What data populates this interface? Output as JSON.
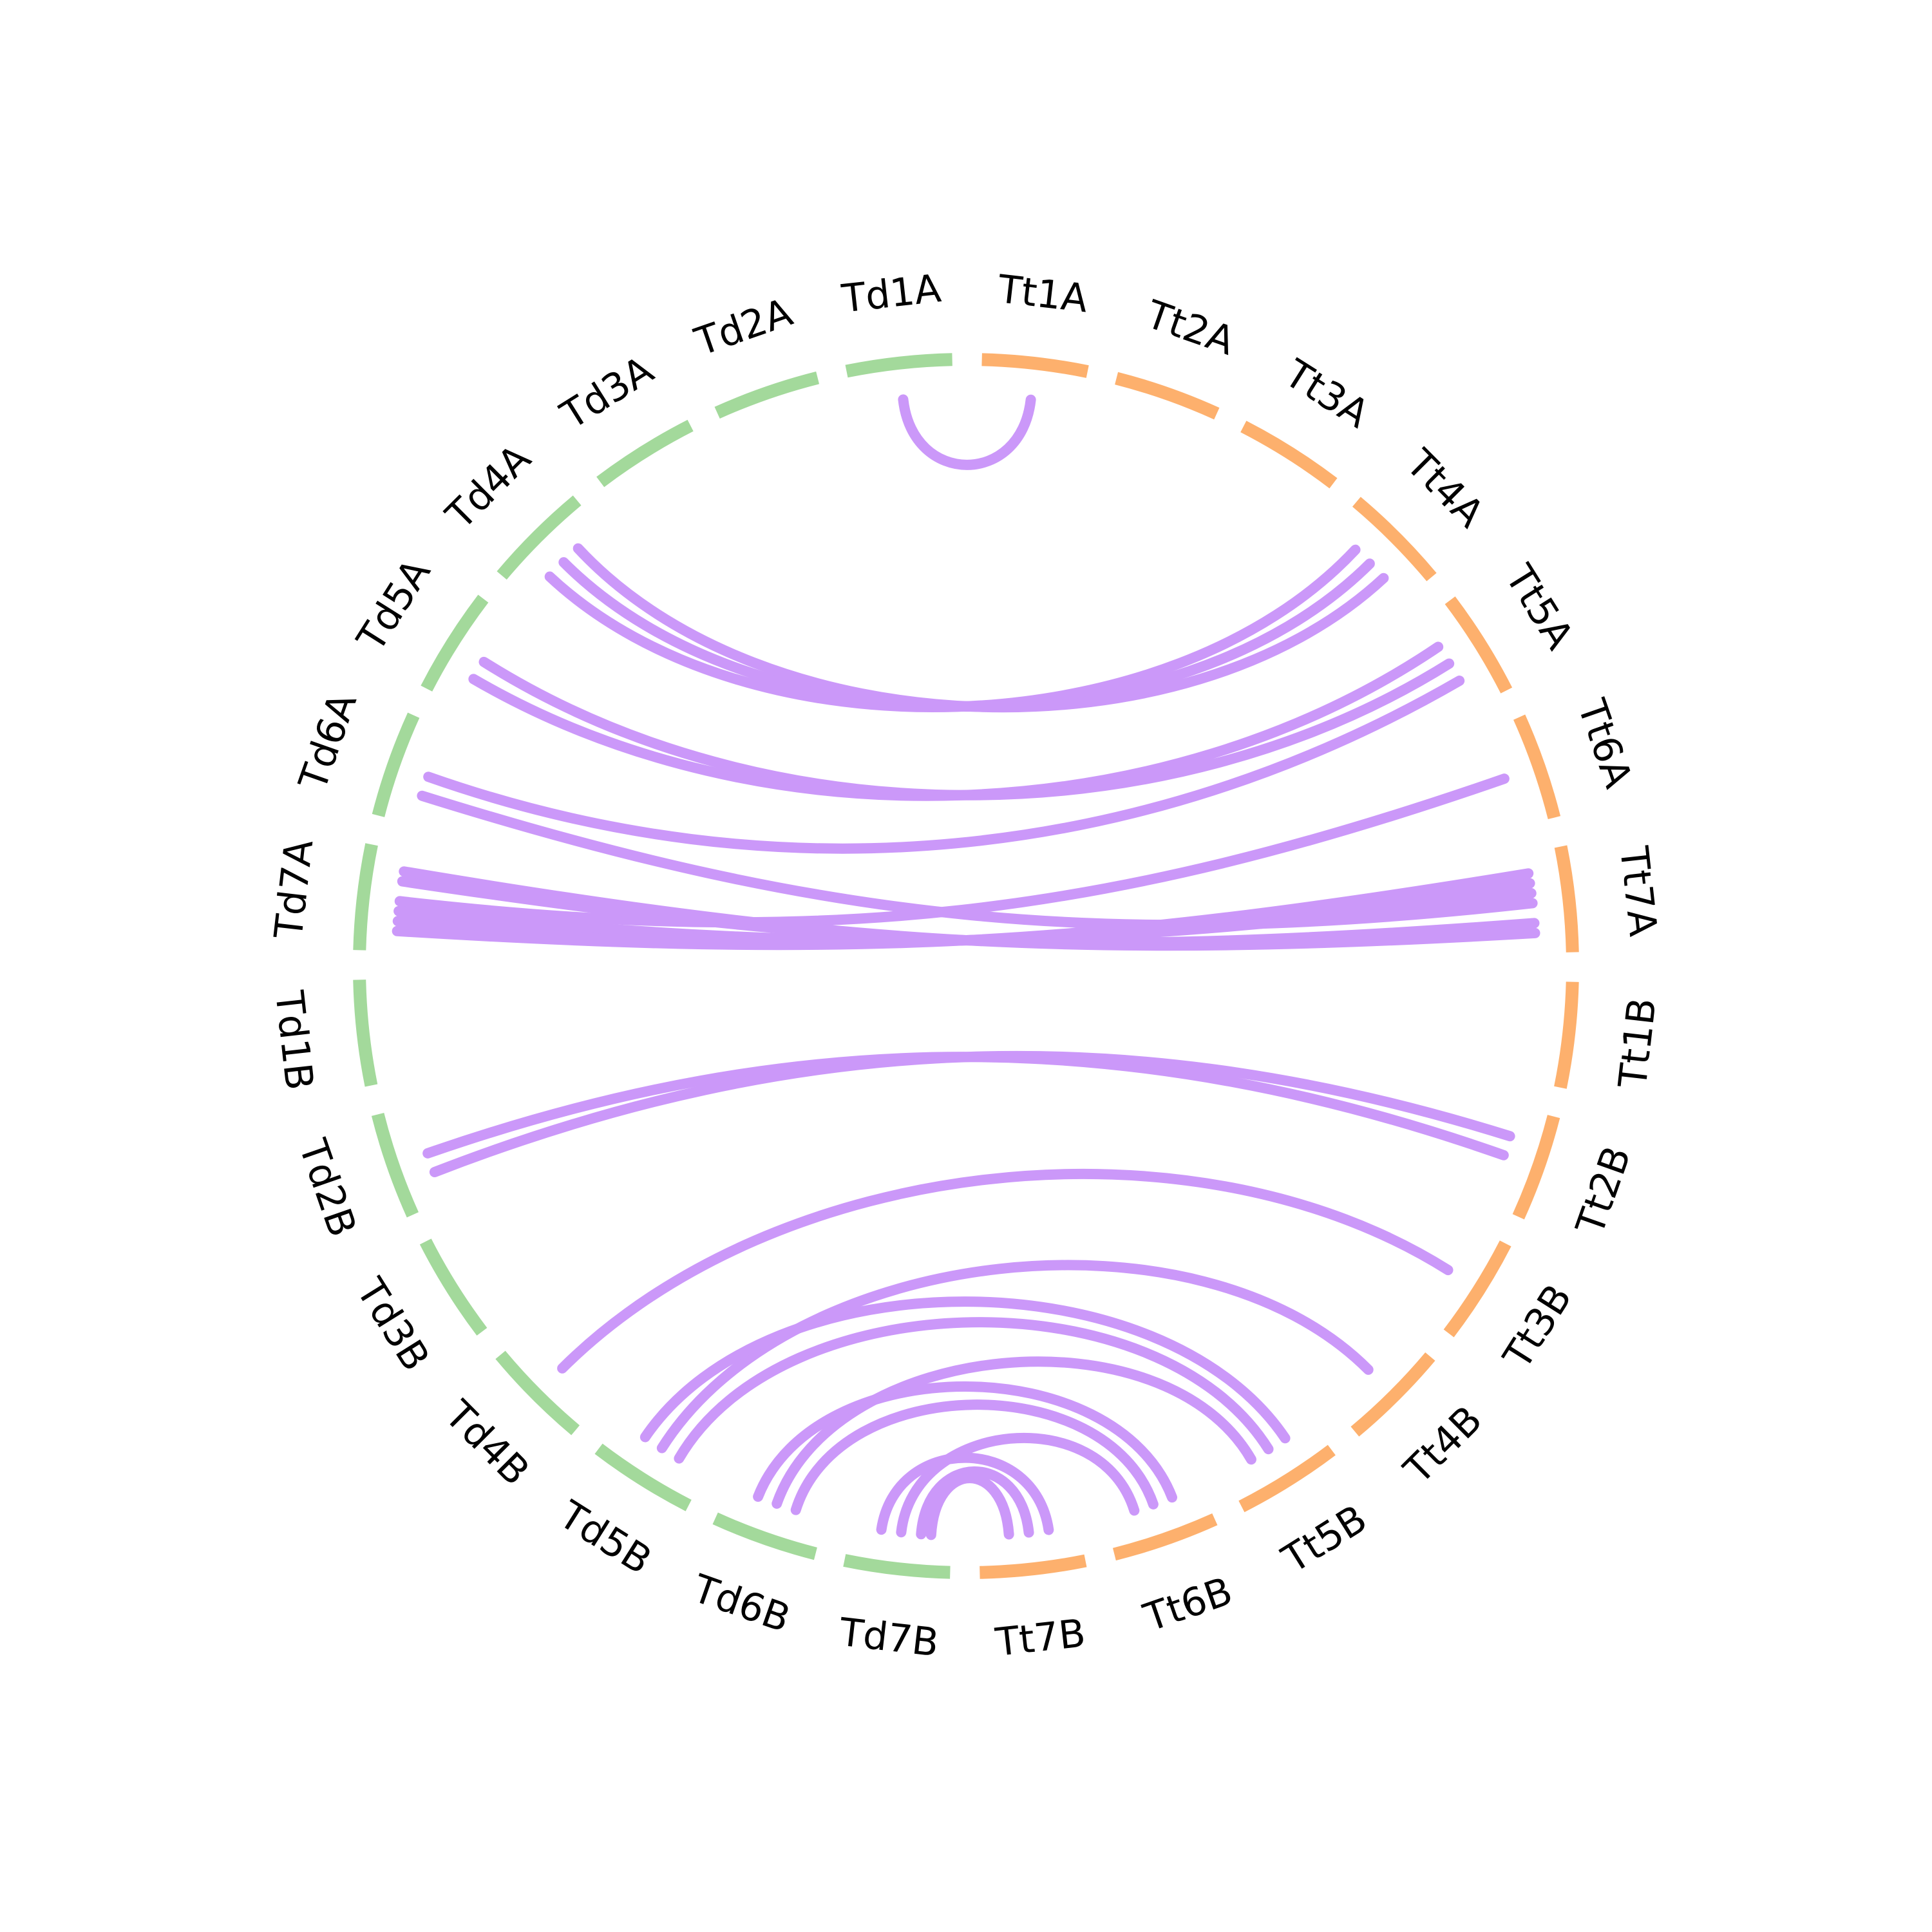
{
  "diagram": {
    "type": "circos-synteny",
    "colors": {
      "genome_Td": "#a3d99b",
      "genome_Tt": "#fdb06d",
      "links": "#cb98f9",
      "background": "#ffffff",
      "label_text": "#000000"
    }
  },
  "chromosomes": [
    {
      "name": "Tt1A",
      "genome": "Tt"
    },
    {
      "name": "Tt2A",
      "genome": "Tt"
    },
    {
      "name": "Tt3A",
      "genome": "Tt"
    },
    {
      "name": "Tt4A",
      "genome": "Tt"
    },
    {
      "name": "Tt5A",
      "genome": "Tt"
    },
    {
      "name": "Tt6A",
      "genome": "Tt"
    },
    {
      "name": "Tt7A",
      "genome": "Tt"
    },
    {
      "name": "Tt1B",
      "genome": "Tt"
    },
    {
      "name": "Tt2B",
      "genome": "Tt"
    },
    {
      "name": "Tt3B",
      "genome": "Tt"
    },
    {
      "name": "Tt4B",
      "genome": "Tt"
    },
    {
      "name": "Tt5B",
      "genome": "Tt"
    },
    {
      "name": "Tt6B",
      "genome": "Tt"
    },
    {
      "name": "Tt7B",
      "genome": "Tt"
    },
    {
      "name": "Td7B",
      "genome": "Td"
    },
    {
      "name": "Td6B",
      "genome": "Td"
    },
    {
      "name": "Td5B",
      "genome": "Td"
    },
    {
      "name": "Td4B",
      "genome": "Td"
    },
    {
      "name": "Td3B",
      "genome": "Td"
    },
    {
      "name": "Td2B",
      "genome": "Td"
    },
    {
      "name": "Td1B",
      "genome": "Td"
    },
    {
      "name": "Td7A",
      "genome": "Td"
    },
    {
      "name": "Td6A",
      "genome": "Td"
    },
    {
      "name": "Td5A",
      "genome": "Td"
    },
    {
      "name": "Td4A",
      "genome": "Td"
    },
    {
      "name": "Td3A",
      "genome": "Td"
    },
    {
      "name": "Td2A",
      "genome": "Td"
    },
    {
      "name": "Td1A",
      "genome": "Td"
    }
  ],
  "links": [
    {
      "from": "Td1A",
      "to": "Tt1A"
    },
    {
      "from": "Td4A",
      "to": "Tt4A"
    },
    {
      "from": "Td4A",
      "to": "Tt4A"
    },
    {
      "from": "Td4A",
      "to": "Tt4A"
    },
    {
      "from": "Td5A",
      "to": "Tt5A"
    },
    {
      "from": "Td5A",
      "to": "Tt5A"
    },
    {
      "from": "Td6A",
      "to": "Tt5A"
    },
    {
      "from": "Td6A",
      "to": "Tt7A"
    },
    {
      "from": "Td7A",
      "to": "Tt6A"
    },
    {
      "from": "Td7A",
      "to": "Tt7A"
    },
    {
      "from": "Td7A",
      "to": "Tt7A"
    },
    {
      "from": "Td7A",
      "to": "Tt7A"
    },
    {
      "from": "Td7A",
      "to": "Tt7A"
    },
    {
      "from": "Td7A",
      "to": "Tt7A"
    },
    {
      "from": "Td2B",
      "to": "Tt2B"
    },
    {
      "from": "Td2B",
      "to": "Tt2B"
    },
    {
      "from": "Td4B",
      "to": "Tt3B"
    },
    {
      "from": "Td5B",
      "to": "Tt4B"
    },
    {
      "from": "Td5B",
      "to": "Tt5B"
    },
    {
      "from": "Td5B",
      "to": "Tt5B"
    },
    {
      "from": "Td6B",
      "to": "Tt5B"
    },
    {
      "from": "Td6B",
      "to": "Tt6B"
    },
    {
      "from": "Td6B",
      "to": "Tt6B"
    },
    {
      "from": "Td7B",
      "to": "Tt6B"
    },
    {
      "from": "Td7B",
      "to": "Tt7B"
    },
    {
      "from": "Td7B",
      "to": "Tt7B"
    },
    {
      "from": "Td7B",
      "to": "Tt7B"
    }
  ]
}
